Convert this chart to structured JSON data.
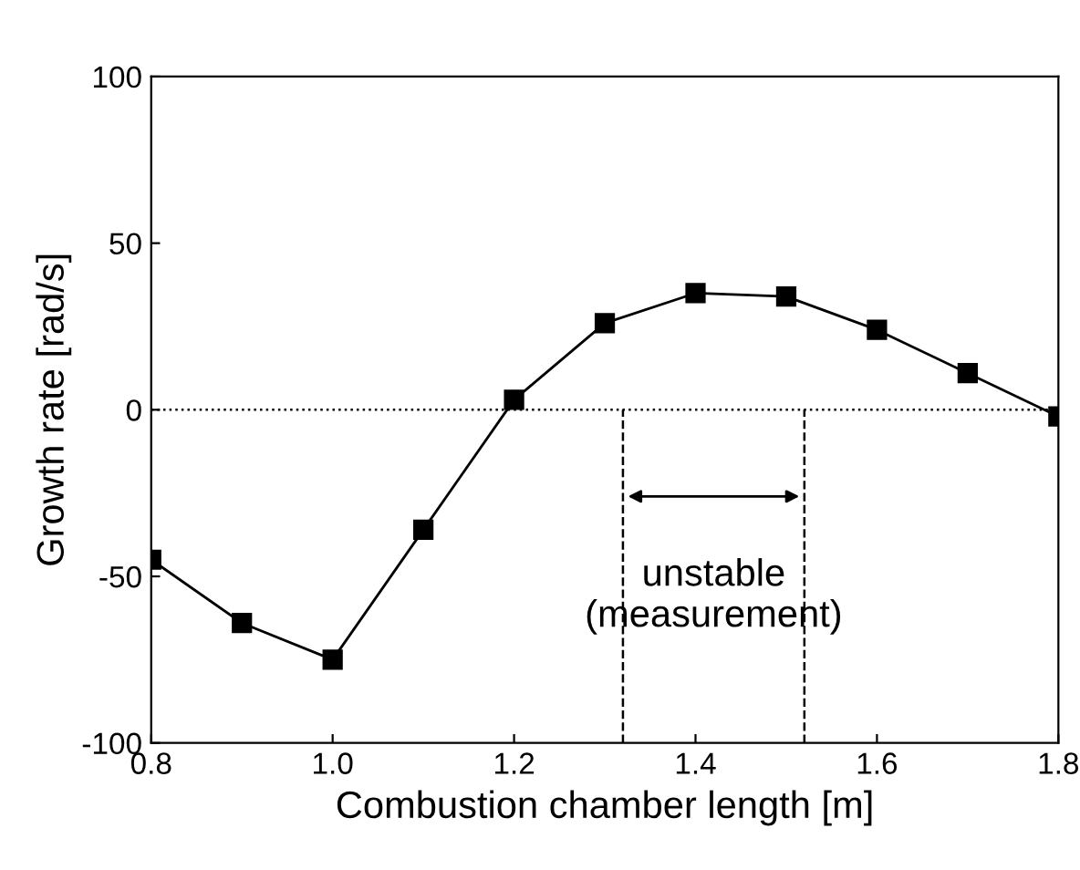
{
  "chart_data": {
    "type": "line",
    "xlabel": "Combustion chamber length [m]",
    "ylabel": "Growth rate [rad/s]",
    "x": [
      0.8,
      0.9,
      1.0,
      1.1,
      1.2,
      1.3,
      1.4,
      1.5,
      1.6,
      1.7,
      1.8
    ],
    "series": [
      {
        "color": "#000000",
        "values": [
          -45,
          -64,
          -75,
          -36,
          3,
          26,
          35,
          34,
          24,
          11,
          -2
        ]
      }
    ],
    "marker": "square",
    "line_style": "solid",
    "xlim": [
      0.8,
      1.8
    ],
    "xticks": [
      0.8,
      {
        "value": 1.0,
        "label": "1.0"
      },
      1.2,
      1.4,
      1.6,
      1.8
    ],
    "ylim": [
      -100,
      100
    ],
    "yticks": [
      -100,
      -50,
      0,
      50,
      100
    ],
    "ref_lines": [
      {
        "axis": "y",
        "value": 0,
        "line_style": "dotted",
        "color": "#000000"
      },
      {
        "axis": "x",
        "value": 1.32,
        "line_style": "dashed",
        "color": "#000000"
      },
      {
        "axis": "x",
        "value": 1.52,
        "line_style": "dashed",
        "color": "#000000"
      }
    ],
    "annotations": [
      "unstable\n(measurement)"
    ],
    "grid": false,
    "legend": false
  }
}
